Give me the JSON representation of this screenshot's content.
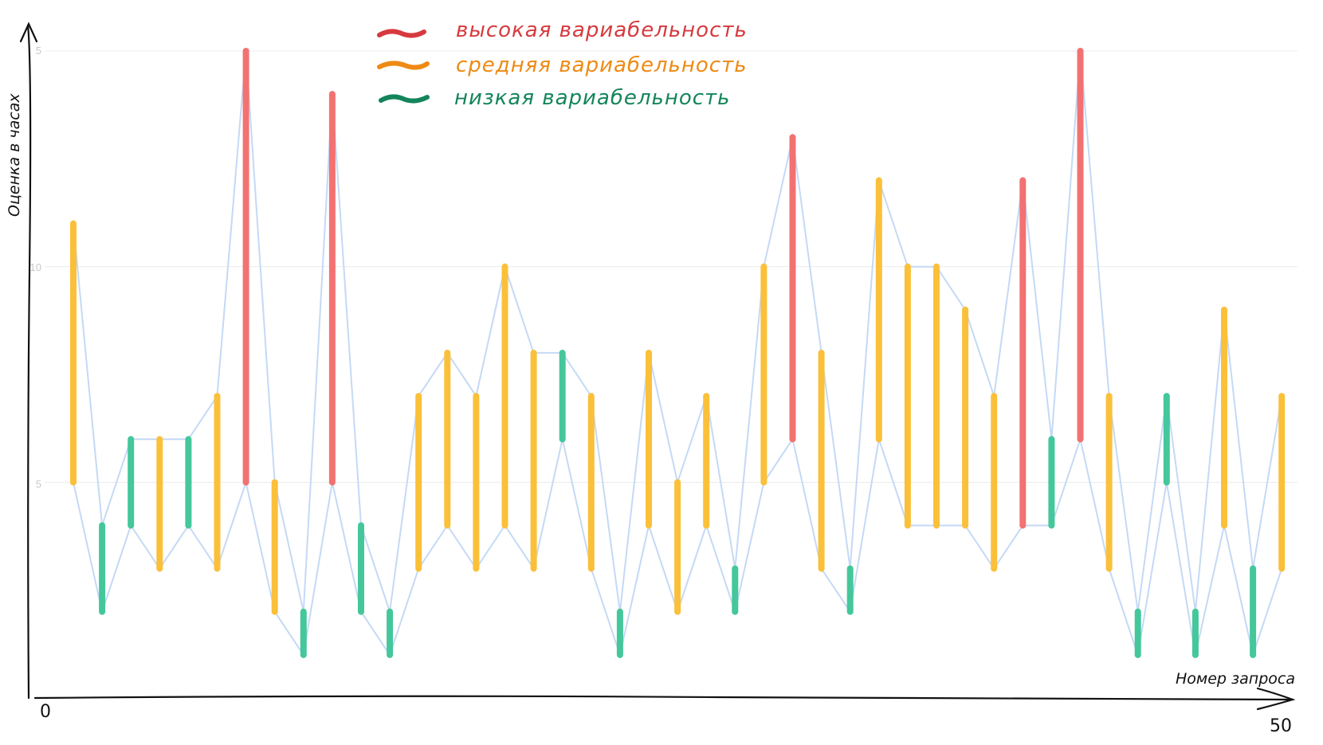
{
  "chart_data": {
    "type": "range_bar",
    "ylabel": "Оценка в часах",
    "xlabel": "Номер запроса",
    "x_start_label": "0",
    "x_end_label": "50",
    "xlim": [
      0,
      50
    ],
    "ylim": [
      0,
      15
    ],
    "ytick_labels": [
      "5",
      "10",
      "5"
    ],
    "grid": true,
    "legend_position": "top-center",
    "legend": [
      {
        "key": "high",
        "label": "высокая вариабельность",
        "color": "#d63a3f"
      },
      {
        "key": "medium",
        "label": "средняя вариабельность",
        "color": "#ee8a14"
      },
      {
        "key": "low",
        "label": "низкая вариабельность",
        "color": "#14855b"
      }
    ],
    "colors": {
      "high": "#f27272",
      "medium": "#fbc03a",
      "low": "#44c79b",
      "envelope": "#c5d9f5",
      "grid": "#ececec"
    },
    "requests": [
      {
        "n": 1,
        "low": 5,
        "high": 11,
        "variability": "medium"
      },
      {
        "n": 2,
        "low": 2,
        "high": 4,
        "variability": "low"
      },
      {
        "n": 3,
        "low": 4,
        "high": 6,
        "variability": "low"
      },
      {
        "n": 4,
        "low": 3,
        "high": 6,
        "variability": "medium"
      },
      {
        "n": 5,
        "low": 4,
        "high": 6,
        "variability": "low"
      },
      {
        "n": 6,
        "low": 3,
        "high": 7,
        "variability": "medium"
      },
      {
        "n": 7,
        "low": 5,
        "high": 15,
        "variability": "high"
      },
      {
        "n": 8,
        "low": 2,
        "high": 5,
        "variability": "medium"
      },
      {
        "n": 9,
        "low": 1,
        "high": 2,
        "variability": "low"
      },
      {
        "n": 10,
        "low": 5,
        "high": 14,
        "variability": "high"
      },
      {
        "n": 11,
        "low": 2,
        "high": 4,
        "variability": "low"
      },
      {
        "n": 12,
        "low": 1,
        "high": 2,
        "variability": "low"
      },
      {
        "n": 13,
        "low": 3,
        "high": 7,
        "variability": "medium"
      },
      {
        "n": 14,
        "low": 4,
        "high": 8,
        "variability": "medium"
      },
      {
        "n": 15,
        "low": 3,
        "high": 7,
        "variability": "medium"
      },
      {
        "n": 16,
        "low": 4,
        "high": 10,
        "variability": "medium"
      },
      {
        "n": 17,
        "low": 3,
        "high": 8,
        "variability": "medium"
      },
      {
        "n": 18,
        "low": 6,
        "high": 8,
        "variability": "low"
      },
      {
        "n": 19,
        "low": 3,
        "high": 7,
        "variability": "medium"
      },
      {
        "n": 20,
        "low": 1,
        "high": 2,
        "variability": "low"
      },
      {
        "n": 21,
        "low": 4,
        "high": 8,
        "variability": "medium"
      },
      {
        "n": 22,
        "low": 2,
        "high": 5,
        "variability": "medium"
      },
      {
        "n": 23,
        "low": 4,
        "high": 7,
        "variability": "medium"
      },
      {
        "n": 24,
        "low": 2,
        "high": 3,
        "variability": "low"
      },
      {
        "n": 25,
        "low": 5,
        "high": 10,
        "variability": "medium"
      },
      {
        "n": 26,
        "low": 6,
        "high": 13,
        "variability": "high"
      },
      {
        "n": 27,
        "low": 3,
        "high": 8,
        "variability": "medium"
      },
      {
        "n": 28,
        "low": 2,
        "high": 3,
        "variability": "low"
      },
      {
        "n": 29,
        "low": 6,
        "high": 12,
        "variability": "medium"
      },
      {
        "n": 30,
        "low": 4,
        "high": 10,
        "variability": "medium"
      },
      {
        "n": 31,
        "low": 4,
        "high": 10,
        "variability": "medium"
      },
      {
        "n": 32,
        "low": 4,
        "high": 9,
        "variability": "medium"
      },
      {
        "n": 33,
        "low": 3,
        "high": 7,
        "variability": "medium"
      },
      {
        "n": 34,
        "low": 4,
        "high": 12,
        "variability": "high"
      },
      {
        "n": 35,
        "low": 4,
        "high": 6,
        "variability": "low"
      },
      {
        "n": 36,
        "low": 6,
        "high": 15,
        "variability": "high"
      },
      {
        "n": 37,
        "low": 3,
        "high": 7,
        "variability": "medium"
      },
      {
        "n": 38,
        "low": 1,
        "high": 2,
        "variability": "low"
      },
      {
        "n": 39,
        "low": 5,
        "high": 7,
        "variability": "low"
      },
      {
        "n": 40,
        "low": 1,
        "high": 2,
        "variability": "low"
      },
      {
        "n": 41,
        "low": 4,
        "high": 9,
        "variability": "medium"
      },
      {
        "n": 42,
        "low": 1,
        "high": 3,
        "variability": "low"
      },
      {
        "n": 43,
        "low": 3,
        "high": 7,
        "variability": "medium"
      }
    ]
  }
}
